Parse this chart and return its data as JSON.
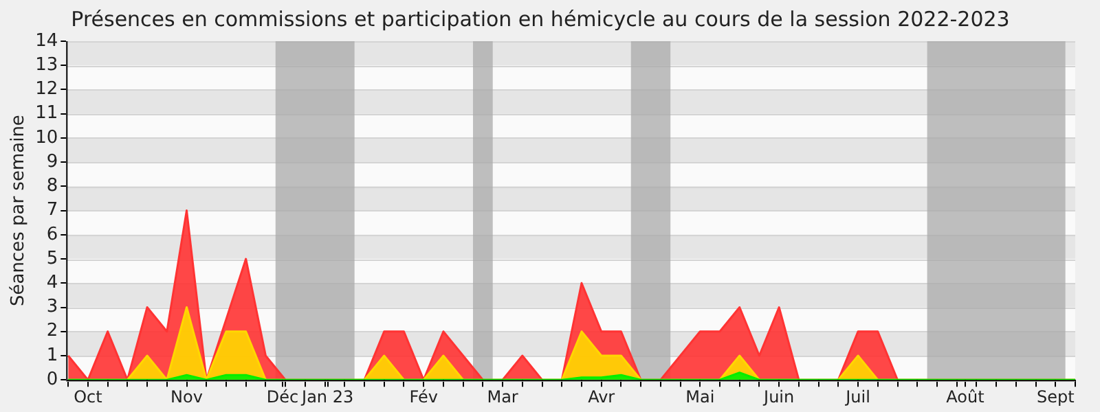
{
  "chart_data": {
    "type": "area",
    "title": "Présences en commissions et participation en hémicycle au cours de la session 2022-2023",
    "ylabel": "Séances par semaine",
    "x": [
      "2022-10-03",
      "2022-10-10",
      "2022-10-17",
      "2022-10-24",
      "2022-10-31",
      "2022-11-07",
      "2022-11-14",
      "2022-11-21",
      "2022-11-28",
      "2022-12-05",
      "2022-12-12",
      "2022-12-19",
      "2022-12-26",
      "2023-01-02",
      "2023-01-09",
      "2023-01-16",
      "2023-01-23",
      "2023-01-30",
      "2023-02-06",
      "2023-02-13",
      "2023-02-20",
      "2023-02-27",
      "2023-03-06",
      "2023-03-13",
      "2023-03-20",
      "2023-03-27",
      "2023-04-03",
      "2023-04-10",
      "2023-04-17",
      "2023-04-24",
      "2023-05-01",
      "2023-05-08",
      "2023-05-15",
      "2023-05-22",
      "2023-05-29",
      "2023-06-05",
      "2023-06-12",
      "2023-06-19",
      "2023-06-26",
      "2023-07-03",
      "2023-07-10",
      "2023-07-17",
      "2023-07-24",
      "2023-07-31",
      "2023-08-07",
      "2023-08-14",
      "2023-08-21",
      "2023-08-28",
      "2023-09-04",
      "2023-09-11",
      "2023-09-18",
      "2023-09-25"
    ],
    "series": [
      {
        "color": "#ff3333",
        "values": [
          1,
          0,
          2,
          0,
          3,
          2,
          7,
          0,
          2.5,
          5,
          1,
          0,
          0,
          0,
          0,
          0,
          2,
          2,
          0,
          2,
          1,
          0,
          0,
          1,
          0,
          0,
          4,
          2,
          2,
          0,
          0,
          1,
          2,
          2,
          3,
          1,
          3,
          0,
          0,
          0,
          2,
          2,
          0,
          0,
          0,
          0,
          0,
          0,
          0,
          0,
          0,
          0
        ]
      },
      {
        "color": "#ffd700",
        "values": [
          0,
          0,
          0,
          0,
          1,
          0,
          3,
          0,
          2,
          2,
          0,
          0,
          0,
          0,
          0,
          0,
          1,
          0,
          0,
          1,
          0,
          0,
          0,
          0,
          0,
          0,
          2,
          1,
          1,
          0,
          0,
          0,
          0,
          0,
          1,
          0,
          0,
          0,
          0,
          0,
          1,
          0,
          0,
          0,
          0,
          0,
          0,
          0,
          0,
          0,
          0,
          0
        ]
      },
      {
        "color": "#00ee00",
        "values": [
          0,
          0,
          0,
          0,
          0,
          0,
          0.2,
          0,
          0.2,
          0.2,
          0,
          0,
          0,
          0,
          0,
          0,
          0,
          0,
          0,
          0,
          0,
          0,
          0,
          0,
          0,
          0,
          0.1,
          0.1,
          0.2,
          0,
          0,
          0,
          0,
          0,
          0.3,
          0,
          0,
          0,
          0,
          0,
          0,
          0,
          0,
          0,
          0,
          0,
          0,
          0,
          0,
          0,
          0,
          0
        ]
      }
    ],
    "xlim": [
      "2022-10-02T07:00",
      "2023-09-25"
    ],
    "xticks": [
      {
        "value": "2022-10-03",
        "label": null
      },
      {
        "value": "2022-10-10",
        "label": "Oct"
      },
      {
        "value": "2022-10-17",
        "label": null
      },
      {
        "value": "2022-10-24",
        "label": null
      },
      {
        "value": "2022-10-31",
        "label": null
      },
      {
        "value": "2022-11-07",
        "label": null
      },
      {
        "value": "2022-11-14",
        "label": "Nov"
      },
      {
        "value": "2022-11-21",
        "label": null
      },
      {
        "value": "2022-11-28",
        "label": null
      },
      {
        "value": "2022-12-05",
        "label": null
      },
      {
        "value": "2022-12-12",
        "label": null
      },
      {
        "value": "2022-12-18",
        "label": "Déc"
      },
      {
        "value": "2022-12-19",
        "label": null
      },
      {
        "value": "2022-12-26",
        "label": null
      },
      {
        "value": "2023-01-02",
        "label": null
      },
      {
        "value": "2023-01-03",
        "label": "Jan 23"
      },
      {
        "value": "2023-01-09",
        "label": null
      },
      {
        "value": "2023-01-16",
        "label": null
      },
      {
        "value": "2023-01-23",
        "label": null
      },
      {
        "value": "2023-01-30",
        "label": null
      },
      {
        "value": "2023-02-06",
        "label": "Fév"
      },
      {
        "value": "2023-02-13",
        "label": null
      },
      {
        "value": "2023-02-20",
        "label": null
      },
      {
        "value": "2023-02-27",
        "label": null
      },
      {
        "value": "2023-03-06",
        "label": "Mar"
      },
      {
        "value": "2023-03-13",
        "label": null
      },
      {
        "value": "2023-03-20",
        "label": null
      },
      {
        "value": "2023-03-27",
        "label": null
      },
      {
        "value": "2023-04-03",
        "label": null
      },
      {
        "value": "2023-04-10",
        "label": "Avr"
      },
      {
        "value": "2023-04-17",
        "label": null
      },
      {
        "value": "2023-04-24",
        "label": null
      },
      {
        "value": "2023-05-01",
        "label": null
      },
      {
        "value": "2023-05-08",
        "label": null
      },
      {
        "value": "2023-05-15",
        "label": "Mai"
      },
      {
        "value": "2023-05-22",
        "label": null
      },
      {
        "value": "2023-05-29",
        "label": null
      },
      {
        "value": "2023-06-05",
        "label": null
      },
      {
        "value": "2023-06-12",
        "label": "Juin"
      },
      {
        "value": "2023-06-19",
        "label": null
      },
      {
        "value": "2023-06-26",
        "label": null
      },
      {
        "value": "2023-07-03",
        "label": null
      },
      {
        "value": "2023-07-10",
        "label": "Juil"
      },
      {
        "value": "2023-07-17",
        "label": null
      },
      {
        "value": "2023-07-24",
        "label": null
      },
      {
        "value": "2023-07-31",
        "label": null
      },
      {
        "value": "2023-08-07",
        "label": null
      },
      {
        "value": "2023-08-14",
        "label": null
      },
      {
        "value": "2023-08-17",
        "label": "Août"
      },
      {
        "value": "2023-08-21",
        "label": null
      },
      {
        "value": "2023-08-28",
        "label": null
      },
      {
        "value": "2023-09-04",
        "label": null
      },
      {
        "value": "2023-09-11",
        "label": null
      },
      {
        "value": "2023-09-18",
        "label": "Sept"
      },
      {
        "value": "2023-09-25",
        "label": null
      }
    ],
    "ylim": [
      0,
      14
    ],
    "yticks": [
      0,
      1,
      2,
      3,
      4,
      5,
      6,
      7,
      8,
      9,
      10,
      11,
      12,
      13,
      14
    ],
    "grid": "y",
    "legend": false,
    "marker": "none",
    "bands": [
      {
        "axis": "x",
        "from": "2022-12-15T12:00",
        "to": "2023-01-12T12:00",
        "color": "#aaaaaa"
      },
      {
        "axis": "x",
        "from": "2023-02-23T12:00",
        "to": "2023-03-02T12:00",
        "color": "#aaaaaa"
      },
      {
        "axis": "x",
        "from": "2023-04-20T12:00",
        "to": "2023-05-04T12:00",
        "color": "#aaaaaa"
      },
      {
        "axis": "x",
        "from": "2023-08-03T12:00",
        "to": "2023-09-21T12:00",
        "color": "#aaaaaa"
      }
    ]
  }
}
